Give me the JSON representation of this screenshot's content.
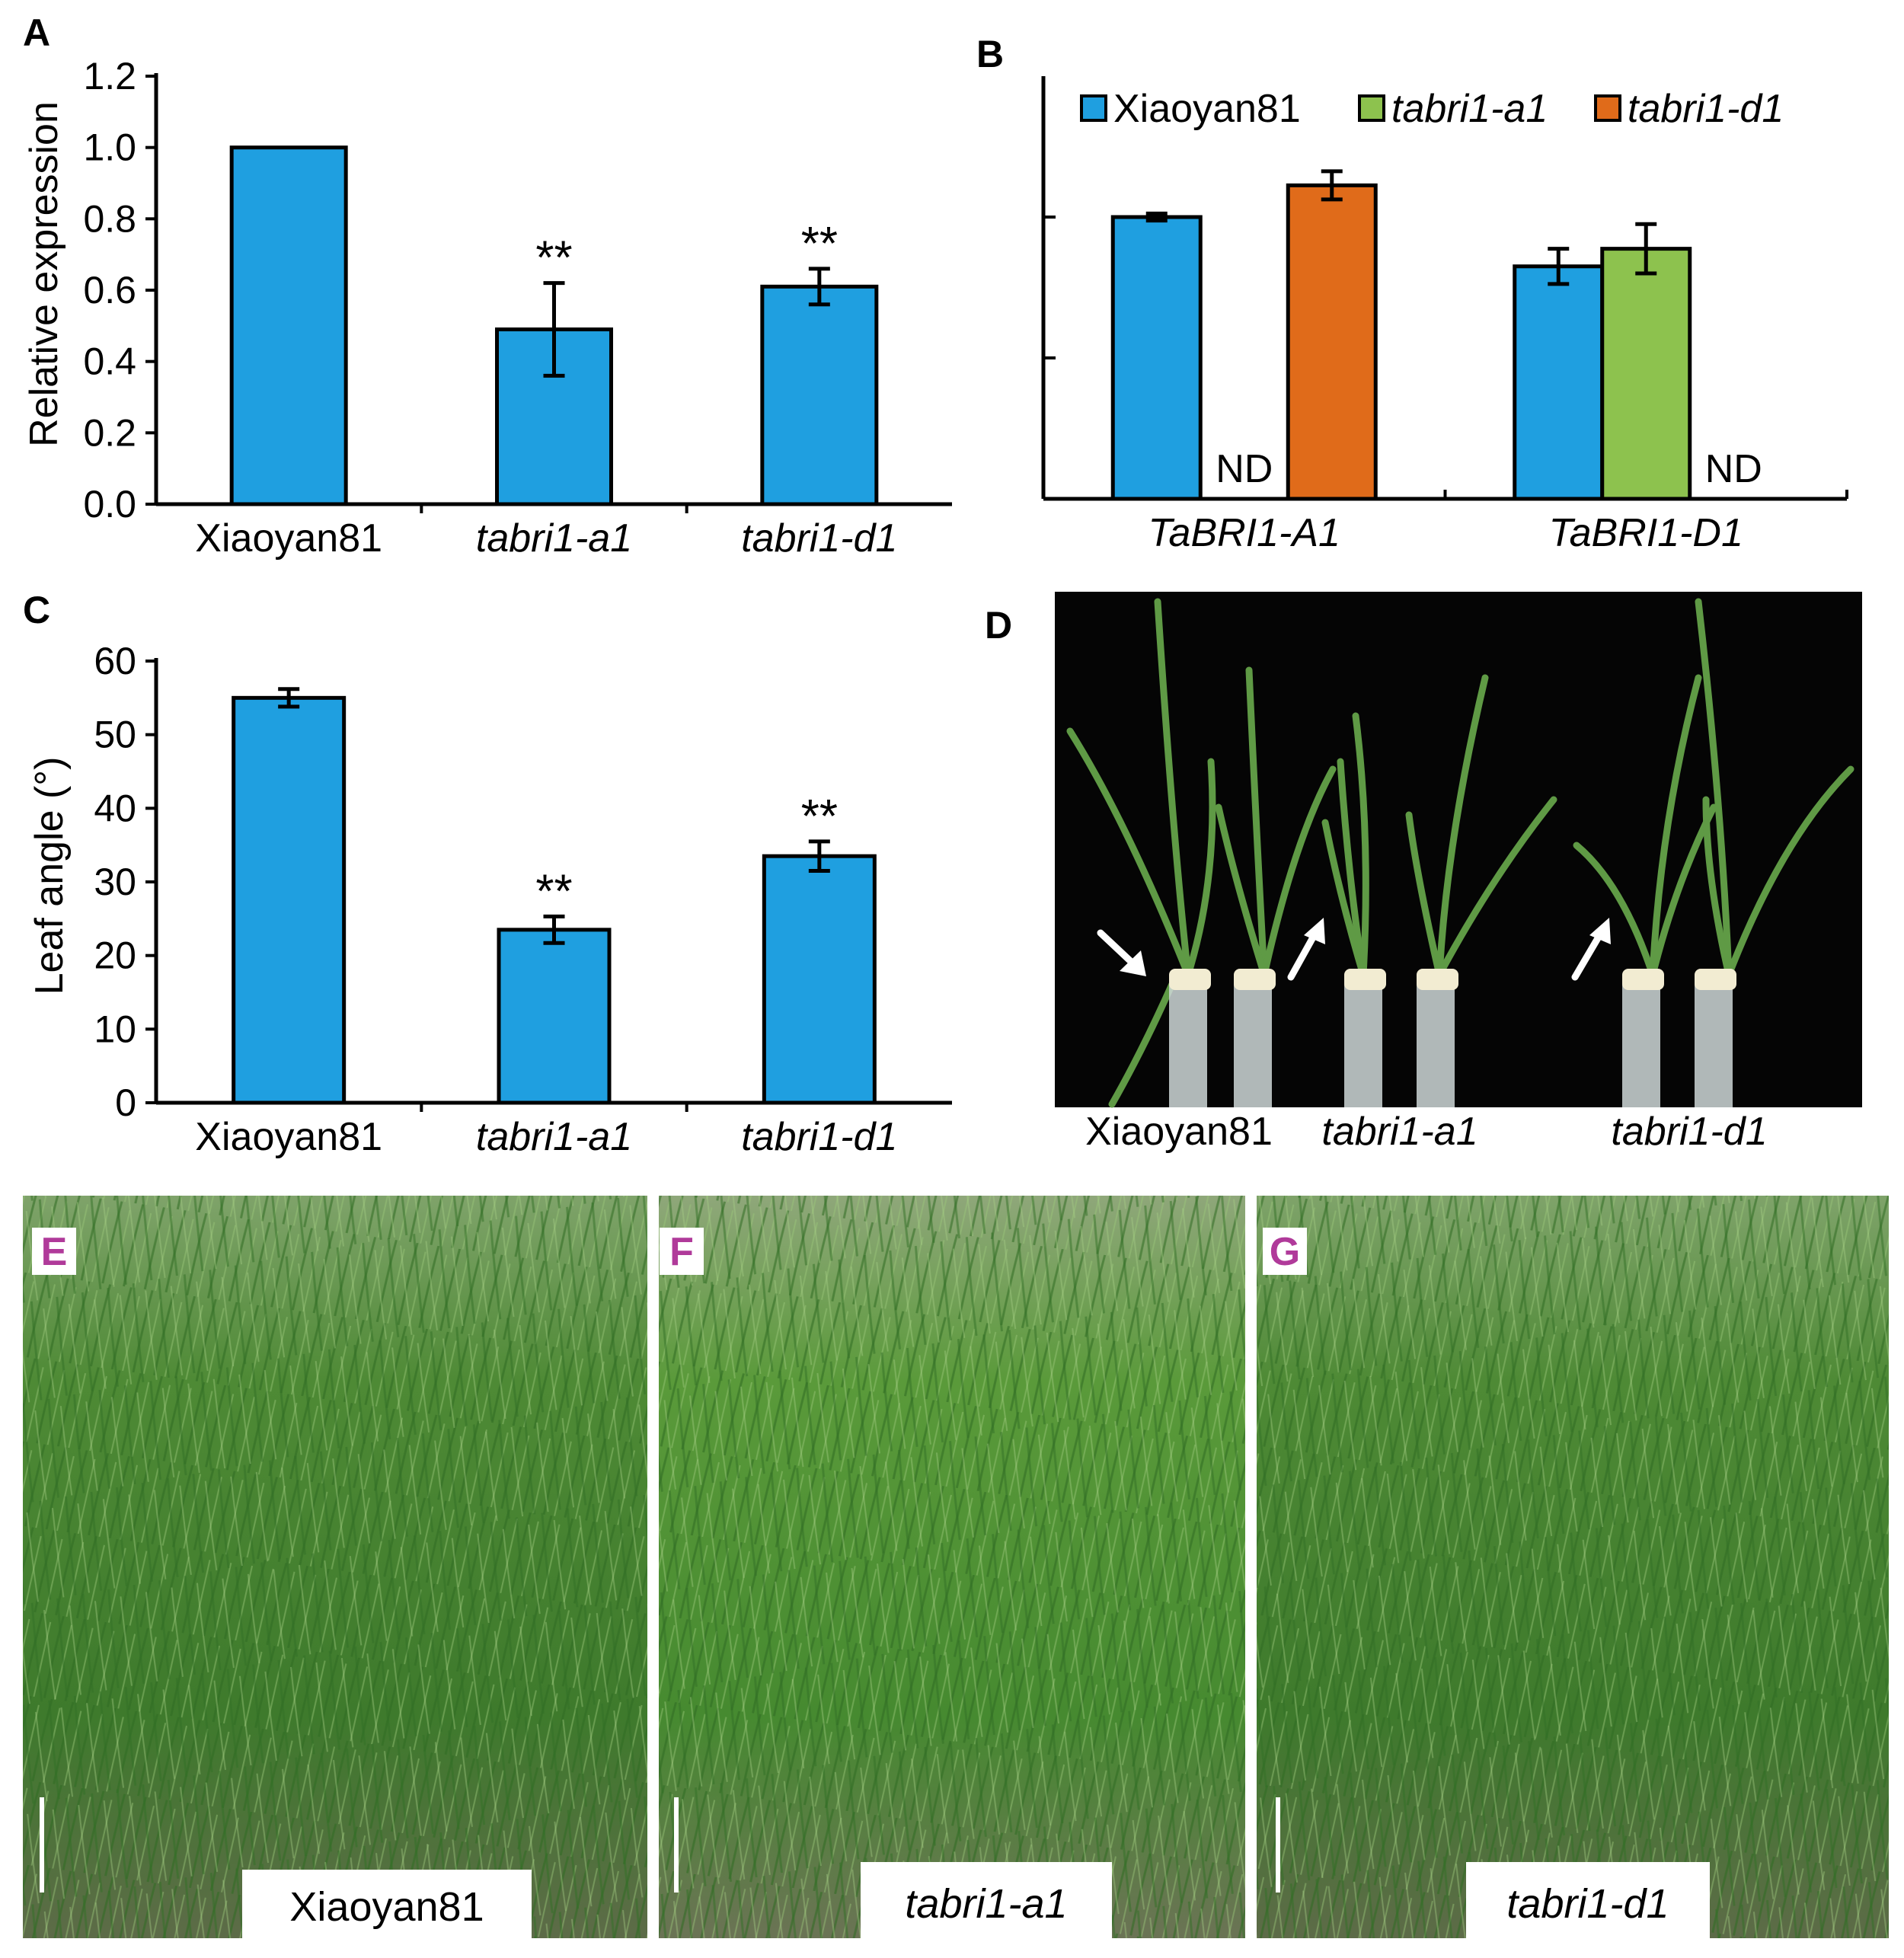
{
  "colors": {
    "xiaoyan81": "#1f9fe0",
    "tabri1_a1": "#8dc24e",
    "tabri1_d1": "#e06b1a",
    "photo_letter": "#b03a9a"
  },
  "chart_data": [
    {
      "panel": "A",
      "type": "bar",
      "ylabel": "Relative expression",
      "ylim": [
        0,
        1.2
      ],
      "yticks": [
        "0.0",
        "0.2",
        "0.4",
        "0.6",
        "0.8",
        "1.0",
        "1.2"
      ],
      "categories": [
        "Xiaoyan81",
        "tabri1-a1",
        "tabri1-d1"
      ],
      "values": [
        1.0,
        0.49,
        0.61
      ],
      "errors": [
        0,
        0.13,
        0.05
      ],
      "significance": [
        "",
        "**",
        "**"
      ]
    },
    {
      "panel": "B",
      "type": "bar",
      "ylim": [
        0,
        1.2
      ],
      "categories": [
        "TaBRI1-A1",
        "TaBRI1-D1"
      ],
      "legend_position": "top",
      "series": [
        {
          "name": "Xiaoyan81",
          "values": [
            0.8,
            0.66
          ],
          "errors": [
            0.01,
            0.05
          ]
        },
        {
          "name": "tabri1-a1",
          "values": [
            null,
            0.71
          ],
          "errors": [
            null,
            0.07
          ]
        },
        {
          "name": "tabri1-d1",
          "values": [
            0.89,
            null
          ],
          "errors": [
            0.04,
            null
          ]
        }
      ],
      "annotations": [
        "ND",
        "ND"
      ]
    },
    {
      "panel": "C",
      "type": "bar",
      "ylabel": "Leaf angle (°)",
      "ylim": [
        0,
        60
      ],
      "yticks": [
        "0",
        "10",
        "20",
        "30",
        "40",
        "50",
        "60"
      ],
      "categories": [
        "Xiaoyan81",
        "tabri1-a1",
        "tabri1-d1"
      ],
      "values": [
        55,
        23.5,
        33.5
      ],
      "errors": [
        1.2,
        1.8,
        2.0
      ],
      "significance": [
        "",
        "**",
        "**"
      ]
    }
  ],
  "panel_d": {
    "letter": "D",
    "labels": [
      "Xiaoyan81",
      "tabri1-a1",
      "tabri1-d1"
    ]
  },
  "photos": [
    {
      "letter": "E",
      "label": "Xiaoyan81"
    },
    {
      "letter": "F",
      "label": "tabri1-a1"
    },
    {
      "letter": "G",
      "label": "tabri1-d1"
    }
  ]
}
